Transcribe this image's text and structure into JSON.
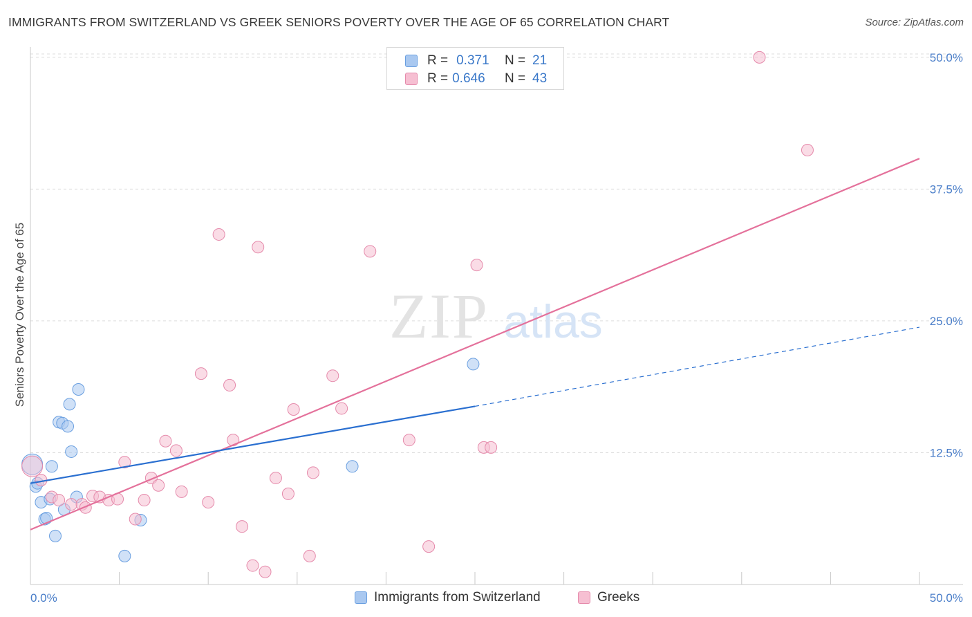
{
  "title": "IMMIGRANTS FROM SWITZERLAND VS GREEK SENIORS POVERTY OVER THE AGE OF 65 CORRELATION CHART",
  "source": "Source: ZipAtlas.com",
  "watermark": {
    "zip": "ZIP",
    "atlas": "atlas"
  },
  "legend": {
    "rows": [
      {
        "r_label": "R =",
        "r_value": "0.371",
        "n_label": "N =",
        "n_value": "21"
      },
      {
        "r_label": "R =",
        "r_value": "0.646",
        "n_label": "N =",
        "n_value": "43"
      }
    ],
    "bottom": [
      "Immigrants from Switzerland",
      "Greeks"
    ]
  },
  "colors": {
    "swiss_fill": "#a9c8f0",
    "swiss_stroke": "#6a9fe0",
    "swiss_line": "#2a6fd0",
    "greek_fill": "#f6bfd2",
    "greek_stroke": "#e58aab",
    "greek_line": "#e4719b",
    "tick_text": "#4a7ec9",
    "grid": "#dcdcdc"
  },
  "chart_data": {
    "type": "scatter",
    "title": "IMMIGRANTS FROM SWITZERLAND VS GREEK SENIORS POVERTY OVER THE AGE OF 65 CORRELATION CHART",
    "xlabel": "",
    "ylabel": "Seniors Poverty Over the Age of 65",
    "xlim": [
      0,
      50
    ],
    "ylim": [
      0,
      51.5
    ],
    "x_tick_labels": [
      "0.0%",
      "50.0%"
    ],
    "y_ticks": [
      12.5,
      25.0,
      37.5,
      50.0
    ],
    "y_tick_labels": [
      "12.5%",
      "25.0%",
      "37.5%",
      "50.0%"
    ],
    "grid": true,
    "legend_position": "top-center",
    "series": [
      {
        "name": "Immigrants from Switzerland",
        "r": 0.371,
        "n": 21,
        "points": [
          [
            0.1,
            11.4
          ],
          [
            0.3,
            9.3
          ],
          [
            0.4,
            9.6
          ],
          [
            0.6,
            7.8
          ],
          [
            0.8,
            6.2
          ],
          [
            0.9,
            6.3
          ],
          [
            1.1,
            8.1
          ],
          [
            1.2,
            11.2
          ],
          [
            1.4,
            4.6
          ],
          [
            1.6,
            15.4
          ],
          [
            1.8,
            15.3
          ],
          [
            1.9,
            7.1
          ],
          [
            2.1,
            15.0
          ],
          [
            2.2,
            17.1
          ],
          [
            2.3,
            12.6
          ],
          [
            2.6,
            8.3
          ],
          [
            2.7,
            18.5
          ],
          [
            5.3,
            2.7
          ],
          [
            6.2,
            6.1
          ],
          [
            18.1,
            11.2
          ],
          [
            24.9,
            20.9
          ]
        ],
        "trend": {
          "x1": 0,
          "y1": 9.6,
          "x2": 25.0,
          "y2": 16.9
        },
        "trend_dashed": {
          "x1": 25.0,
          "y1": 16.9,
          "x2": 50.0,
          "y2": 24.4
        }
      },
      {
        "name": "Greeks",
        "r": 0.646,
        "n": 43,
        "points": [
          [
            0.1,
            11.2
          ],
          [
            0.6,
            9.9
          ],
          [
            1.2,
            8.3
          ],
          [
            1.6,
            8.0
          ],
          [
            2.3,
            7.6
          ],
          [
            2.9,
            7.6
          ],
          [
            3.1,
            7.3
          ],
          [
            3.5,
            8.4
          ],
          [
            3.9,
            8.3
          ],
          [
            4.4,
            8.0
          ],
          [
            4.9,
            8.1
          ],
          [
            5.3,
            11.6
          ],
          [
            5.9,
            6.2
          ],
          [
            6.4,
            8.0
          ],
          [
            6.8,
            10.1
          ],
          [
            7.2,
            9.4
          ],
          [
            7.6,
            13.6
          ],
          [
            8.2,
            12.7
          ],
          [
            8.5,
            8.8
          ],
          [
            9.6,
            20.0
          ],
          [
            10.0,
            7.8
          ],
          [
            10.6,
            33.2
          ],
          [
            11.2,
            18.9
          ],
          [
            11.4,
            13.7
          ],
          [
            11.9,
            5.5
          ],
          [
            12.5,
            1.8
          ],
          [
            12.8,
            32.0
          ],
          [
            13.2,
            1.2
          ],
          [
            13.8,
            10.1
          ],
          [
            14.5,
            8.6
          ],
          [
            14.8,
            16.6
          ],
          [
            15.7,
            2.7
          ],
          [
            15.9,
            10.6
          ],
          [
            17.0,
            19.8
          ],
          [
            17.5,
            16.7
          ],
          [
            19.1,
            31.6
          ],
          [
            21.3,
            13.7
          ],
          [
            22.4,
            3.6
          ],
          [
            25.1,
            30.3
          ],
          [
            25.5,
            13.0
          ],
          [
            25.9,
            13.0
          ],
          [
            41.0,
            50.0
          ],
          [
            43.7,
            41.2
          ]
        ],
        "trend": {
          "x1": 0,
          "y1": 5.2,
          "x2": 50.0,
          "y2": 40.4
        }
      }
    ]
  }
}
